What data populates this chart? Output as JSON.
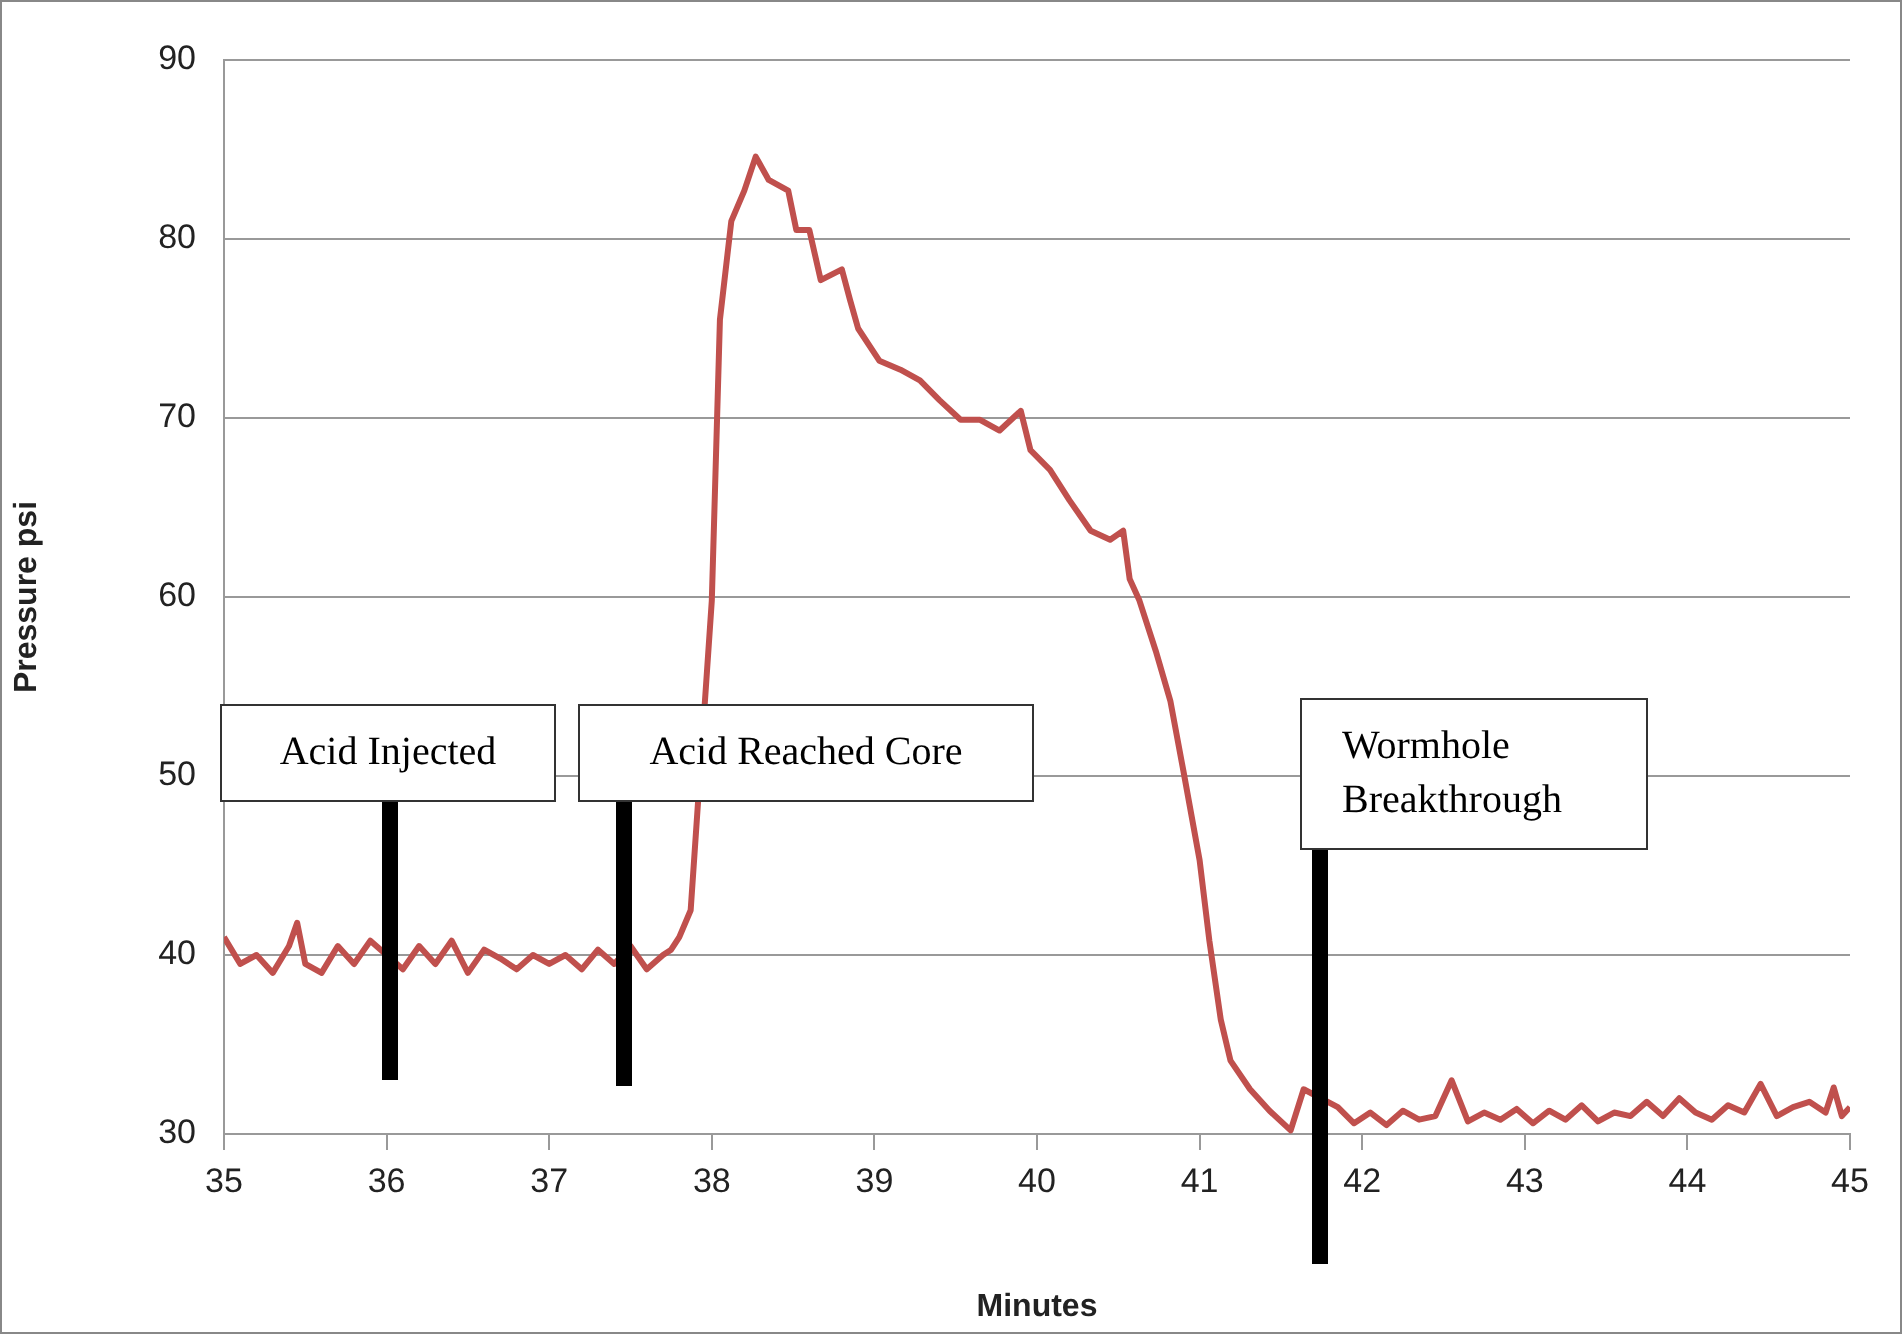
{
  "chart_data": {
    "type": "line",
    "xlabel": "Minutes",
    "ylabel": "Pressure psi",
    "xlim": [
      35,
      45
    ],
    "xticks": [
      35,
      36,
      37,
      38,
      39,
      40,
      41,
      42,
      43,
      44,
      45
    ],
    "ylim": [
      30,
      90
    ],
    "yticks": [
      30,
      40,
      50,
      60,
      70,
      80,
      90
    ],
    "grid": "y",
    "legend": false,
    "marker": "none",
    "line_style": "solid",
    "series": [
      {
        "color": "#c0504d",
        "x": [
          35,
          35.1,
          35.2,
          35.3,
          35.4,
          35.45,
          35.5,
          35.6,
          35.7,
          35.8,
          35.9,
          36,
          36.1,
          36.2,
          36.3,
          36.4,
          36.5,
          36.6,
          36.7,
          36.8,
          36.9,
          37,
          37.1,
          37.2,
          37.3,
          37.4,
          37.5,
          37.6,
          37.7,
          37.75,
          37.8,
          37.87,
          37.93,
          38,
          38.05,
          38.12,
          38.2,
          38.27,
          38.35,
          38.47,
          38.52,
          38.6,
          38.67,
          38.8,
          38.85,
          38.9,
          39.03,
          39.16,
          39.28,
          39.4,
          39.53,
          39.65,
          39.77,
          39.9,
          39.96,
          40.08,
          40.2,
          40.33,
          40.45,
          40.53,
          40.57,
          40.63,
          40.73,
          40.82,
          40.9,
          41,
          41.06,
          41.13,
          41.19,
          41.31,
          41.43,
          41.56,
          41.64,
          41.74,
          41.85,
          41.95,
          42.05,
          42.15,
          42.25,
          42.35,
          42.45,
          42.55,
          42.65,
          42.75,
          42.85,
          42.95,
          43.05,
          43.15,
          43.25,
          43.35,
          43.45,
          43.55,
          43.65,
          43.75,
          43.85,
          43.95,
          44.05,
          44.15,
          44.25,
          44.35,
          44.45,
          44.55,
          44.65,
          44.75,
          44.85,
          44.9,
          44.95,
          45
        ],
        "values": [
          41,
          39.5,
          40,
          39,
          40.5,
          41.8,
          39.5,
          39,
          40.5,
          39.5,
          40.8,
          null,
          39.2,
          40.5,
          39.5,
          40.8,
          39,
          40.3,
          39.8,
          39.2,
          40,
          39.5,
          40,
          39.2,
          40.3,
          39.5,
          40.5,
          39.2,
          40,
          40.3,
          41,
          42.5,
          null,
          59.8,
          75.5,
          81,
          82.7,
          84.6,
          83.3,
          82.7,
          80.5,
          80.5,
          77.7,
          78.3,
          76.6,
          75,
          73.2,
          72.7,
          72.1,
          71,
          69.9,
          69.9,
          69.3,
          70.4,
          68.2,
          67.1,
          65.4,
          63.7,
          63.2,
          63.7,
          61,
          59.8,
          57,
          54.2,
          50.3,
          45.3,
          40.8,
          36.4,
          34.1,
          32.5,
          31.3,
          30.2,
          32.5,
          null,
          31.5,
          30.6,
          31.2,
          30.5,
          31.3,
          30.8,
          31,
          33,
          30.7,
          31.2,
          30.8,
          31.4,
          30.6,
          31.3,
          30.8,
          31.6,
          30.7,
          31.2,
          31,
          31.8,
          31,
          32,
          31.2,
          30.8,
          31.6,
          31.2,
          32.8,
          31,
          31.5,
          31.8,
          31.2,
          32.6,
          31,
          31.5
        ]
      }
    ],
    "annotations": [
      "Acid Injected",
      "Acid Reached Core",
      "Wormhole Breakthrough"
    ]
  }
}
